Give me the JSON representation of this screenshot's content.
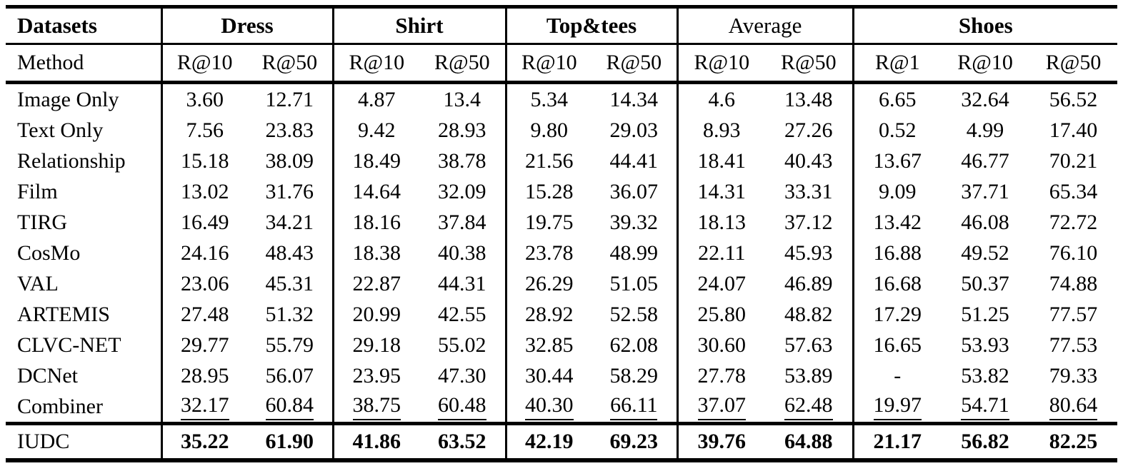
{
  "table": {
    "header": {
      "datasets_label": "Datasets",
      "method_label": "Method",
      "groups": [
        {
          "label": "Dress",
          "bold": true
        },
        {
          "label": "Shirt",
          "bold": true
        },
        {
          "label": "Top&tees",
          "bold": true
        },
        {
          "label": "Average",
          "bold": false
        },
        {
          "label": "Shoes",
          "bold": true
        }
      ],
      "metrics": [
        "R@10",
        "R@50",
        "R@10",
        "R@50",
        "R@10",
        "R@50",
        "R@10",
        "R@50",
        "R@1",
        "R@10",
        "R@50"
      ]
    },
    "rows": [
      {
        "method": "Image Only",
        "style": "normal",
        "values": [
          "3.60",
          "12.71",
          "4.87",
          "13.4",
          "5.34",
          "14.34",
          "4.6",
          "13.48",
          "6.65",
          "32.64",
          "56.52"
        ]
      },
      {
        "method": "Text Only",
        "style": "normal",
        "values": [
          "7.56",
          "23.83",
          "9.42",
          "28.93",
          "9.80",
          "29.03",
          "8.93",
          "27.26",
          "0.52",
          "4.99",
          "17.40"
        ]
      },
      {
        "method": "Relationship",
        "style": "normal",
        "values": [
          "15.18",
          "38.09",
          "18.49",
          "38.78",
          "21.56",
          "44.41",
          "18.41",
          "40.43",
          "13.67",
          "46.77",
          "70.21"
        ]
      },
      {
        "method": "Film",
        "style": "normal",
        "values": [
          "13.02",
          "31.76",
          "14.64",
          "32.09",
          "15.28",
          "36.07",
          "14.31",
          "33.31",
          "9.09",
          "37.71",
          "65.34"
        ]
      },
      {
        "method": "TIRG",
        "style": "normal",
        "values": [
          "16.49",
          "34.21",
          "18.16",
          "37.84",
          "19.75",
          "39.32",
          "18.13",
          "37.12",
          "13.42",
          "46.08",
          "72.72"
        ]
      },
      {
        "method": "CosMo",
        "style": "normal",
        "values": [
          "24.16",
          "48.43",
          "18.38",
          "40.38",
          "23.78",
          "48.99",
          "22.11",
          "45.93",
          "16.88",
          "49.52",
          "76.10"
        ]
      },
      {
        "method": "VAL",
        "style": "normal",
        "values": [
          "23.06",
          "45.31",
          "22.87",
          "44.31",
          "26.29",
          "51.05",
          "24.07",
          "46.89",
          "16.68",
          "50.37",
          "74.88"
        ]
      },
      {
        "method": "ARTEMIS",
        "style": "normal",
        "values": [
          "27.48",
          "51.32",
          "20.99",
          "42.55",
          "28.92",
          "52.58",
          "25.80",
          "48.82",
          "17.29",
          "51.25",
          "77.57"
        ]
      },
      {
        "method": "CLVC-NET",
        "style": "normal",
        "values": [
          "29.77",
          "55.79",
          "29.18",
          "55.02",
          "32.85",
          "62.08",
          "30.60",
          "57.63",
          "16.65",
          "53.93",
          "77.53"
        ]
      },
      {
        "method": "DCNet",
        "style": "normal",
        "values": [
          "28.95",
          "56.07",
          "23.95",
          "47.30",
          "30.44",
          "58.29",
          "27.78",
          "53.89",
          "-",
          "53.82",
          "79.33"
        ]
      },
      {
        "method": "Combiner",
        "style": "underline",
        "values": [
          "32.17",
          "60.84",
          "38.75",
          "60.48",
          "40.30",
          "66.11",
          "37.07",
          "62.48",
          "19.97",
          "54.71",
          "80.64"
        ]
      },
      {
        "method": "IUDC",
        "style": "bold",
        "final": true,
        "values": [
          "35.22",
          "61.90",
          "41.86",
          "63.52",
          "42.19",
          "69.23",
          "39.76",
          "64.88",
          "21.17",
          "56.82",
          "82.25"
        ]
      }
    ]
  }
}
